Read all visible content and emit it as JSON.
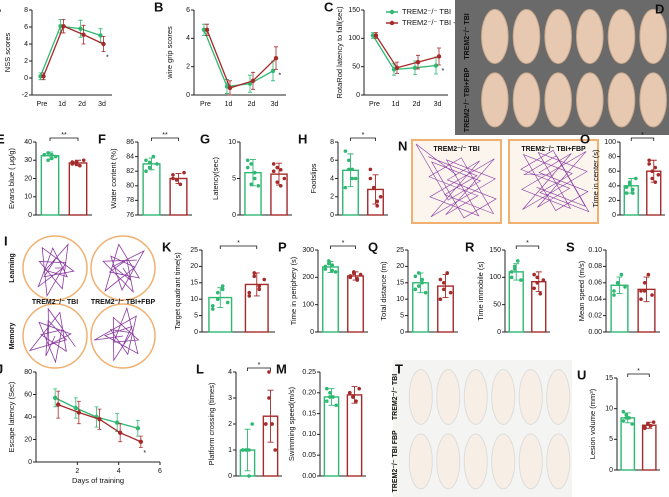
{
  "chart_data": [
    {
      "type": "line",
      "panel": "A",
      "ylabel": "NSS scores",
      "categories": [
        "Pre",
        "1d",
        "2d",
        "3d"
      ],
      "ylim": [
        -2,
        8
      ],
      "yticks": [
        -2,
        0,
        2,
        4,
        6,
        8
      ],
      "annotation": "*",
      "series": [
        {
          "color": "#2eb872",
          "values": [
            0.2,
            6.1,
            5.8,
            5.0
          ],
          "errors": [
            0.4,
            0.8,
            1.0,
            0.8
          ]
        },
        {
          "color": "#a52a2a",
          "values": [
            0.2,
            6.1,
            5.1,
            4.0
          ],
          "errors": [
            0.4,
            0.8,
            1.1,
            0.9
          ]
        }
      ]
    },
    {
      "type": "line",
      "panel": "B",
      "ylabel": "wire grip scores",
      "categories": [
        "Pre",
        "1d",
        "2d",
        "3d"
      ],
      "ylim": [
        0,
        6
      ],
      "yticks": [
        0,
        2,
        4,
        6
      ],
      "annotation": "*",
      "series": [
        {
          "color": "#2eb872",
          "values": [
            4.6,
            0.6,
            0.8,
            1.7
          ],
          "errors": [
            0.4,
            0.5,
            0.6,
            0.7
          ]
        },
        {
          "color": "#a52a2a",
          "values": [
            4.6,
            0.5,
            1.0,
            2.6
          ],
          "errors": [
            0.4,
            0.5,
            0.6,
            0.8
          ]
        }
      ]
    },
    {
      "type": "line",
      "panel": "C",
      "ylabel": "RotaRod latency to fall(sec)",
      "categories": [
        "Pre",
        "1d",
        "2d",
        "3d"
      ],
      "ylim": [
        0,
        150
      ],
      "yticks": [
        0,
        50,
        100,
        150
      ],
      "annotation": "*",
      "series": [
        {
          "name": "TREM2⁻/⁻ TBI",
          "color": "#2eb872",
          "values": [
            105,
            45,
            48,
            52
          ],
          "errors": [
            5,
            10,
            12,
            15
          ]
        },
        {
          "name": "TREM2⁻/⁻ TBI +FBP",
          "color": "#a52a2a",
          "values": [
            105,
            48,
            58,
            68
          ],
          "errors": [
            5,
            10,
            12,
            15
          ]
        }
      ]
    },
    {
      "type": "image",
      "panel": "D",
      "labels": [
        "TREM2⁻/⁻ TBI",
        "TREM2⁻/⁻ TBI+FBP"
      ]
    },
    {
      "type": "bar",
      "panel": "E",
      "ylabel": "Evans blue ( μg/g)",
      "ylim": [
        0,
        40
      ],
      "yticks": [
        0,
        10,
        20,
        30,
        40
      ],
      "significance": "**",
      "series": [
        {
          "color": "#2eb872",
          "value": 32.5,
          "error": 2,
          "points": [
            33,
            34,
            31,
            32,
            33,
            30,
            33
          ]
        },
        {
          "color": "#a52a2a",
          "value": 28.5,
          "error": 1.5,
          "points": [
            29,
            28,
            27,
            30,
            28,
            29
          ]
        }
      ]
    },
    {
      "type": "bar",
      "panel": "F",
      "ylabel": "Water content (%)",
      "ylim": [
        76,
        86
      ],
      "yticks": [
        76,
        78,
        80,
        82,
        84,
        86
      ],
      "significance": "**",
      "series": [
        {
          "color": "#2eb872",
          "value": 83,
          "error": 0.8,
          "points": [
            83.5,
            82.5,
            84,
            83,
            82,
            83.2
          ]
        },
        {
          "color": "#a52a2a",
          "value": 81,
          "error": 0.7,
          "points": [
            81.5,
            80.8,
            80.2,
            81.8,
            81
          ]
        }
      ]
    },
    {
      "type": "bar",
      "panel": "G",
      "ylabel": "Latency(sec)",
      "ylim": [
        0,
        10
      ],
      "yticks": [
        0,
        5,
        10
      ],
      "series": [
        {
          "color": "#2eb872",
          "value": 5.8,
          "error": 1.8,
          "points": [
            7.5,
            7,
            5,
            4,
            6.5,
            4.2,
            5.8
          ]
        },
        {
          "color": "#a52a2a",
          "value": 5.6,
          "error": 1.5,
          "points": [
            7,
            6.5,
            4,
            5,
            6,
            4.5,
            6.2
          ]
        }
      ]
    },
    {
      "type": "bar",
      "panel": "H",
      "ylabel": "Footslips",
      "ylim": [
        0,
        8
      ],
      "yticks": [
        0,
        2,
        4,
        6,
        8
      ],
      "significance": "*",
      "series": [
        {
          "color": "#2eb872",
          "value": 4.9,
          "error": 1.8,
          "points": [
            7,
            6,
            5,
            4,
            3,
            5,
            4
          ]
        },
        {
          "color": "#a52a2a",
          "value": 2.8,
          "error": 1.6,
          "points": [
            4,
            3,
            1,
            2,
            5,
            3,
            1.5
          ]
        }
      ]
    },
    {
      "type": "image",
      "panel": "N",
      "labels": [
        "TREM2⁻/⁻ TBI",
        "TREM2⁻/⁻ TBI+FBP"
      ]
    },
    {
      "type": "bar",
      "panel": "O",
      "ylabel": "Time in center (s)",
      "ylim": [
        0,
        100
      ],
      "yticks": [
        0,
        20,
        40,
        60,
        80,
        100
      ],
      "significance": "*",
      "series": [
        {
          "color": "#2eb872",
          "value": 40,
          "error": 10,
          "points": [
            30,
            45,
            35,
            50,
            38,
            42,
            30
          ]
        },
        {
          "color": "#a52a2a",
          "value": 60,
          "error": 15,
          "points": [
            75,
            60,
            45,
            55,
            70,
            50,
            65
          ]
        }
      ]
    },
    {
      "type": "image",
      "panel": "I",
      "labels": [
        "Learning",
        "Memory",
        "TREM2⁻/⁻ TBI",
        "TREM2⁻/⁻ TBI+FBP"
      ]
    },
    {
      "type": "bar",
      "panel": "K",
      "ylabel": "Target quadrant time(s)",
      "ylim": [
        0,
        25
      ],
      "yticks": [
        0,
        5,
        10,
        15,
        20,
        25
      ],
      "significance": "*",
      "series": [
        {
          "color": "#2eb872",
          "value": 10.5,
          "error": 3,
          "points": [
            8,
            12,
            14,
            9,
            7,
            10,
            13
          ]
        },
        {
          "color": "#a52a2a",
          "value": 14.5,
          "error": 3.5,
          "points": [
            12,
            18,
            14,
            16,
            11,
            17,
            13
          ]
        }
      ]
    },
    {
      "type": "bar",
      "panel": "P",
      "ylabel": "Time in periphery (s)",
      "ylim": [
        0,
        300
      ],
      "yticks": [
        0,
        100,
        200,
        300
      ],
      "significance": "*",
      "series": [
        {
          "color": "#2eb872",
          "value": 238,
          "error": 20,
          "points": [
            230,
            250,
            245,
            220,
            240,
            260,
            225
          ]
        },
        {
          "color": "#a52a2a",
          "value": 205,
          "error": 15,
          "points": [
            200,
            215,
            190,
            210,
            205,
            220,
            195
          ]
        }
      ]
    },
    {
      "type": "bar",
      "panel": "Q",
      "ylabel": "Total distance (m)",
      "ylim": [
        0,
        25
      ],
      "yticks": [
        0,
        5,
        10,
        15,
        20,
        25
      ],
      "series": [
        {
          "color": "#2eb872",
          "value": 15,
          "error": 3,
          "points": [
            13,
            18,
            16,
            12,
            17,
            14,
            15
          ]
        },
        {
          "color": "#a52a2a",
          "value": 14,
          "error": 3.5,
          "points": [
            10,
            15,
            18,
            12,
            16,
            13
          ]
        }
      ]
    },
    {
      "type": "bar",
      "panel": "R",
      "ylabel": "Time immobile (s)",
      "ylim": [
        0,
        150
      ],
      "yticks": [
        0,
        50,
        100,
        150
      ],
      "significance": "*",
      "series": [
        {
          "color": "#2eb872",
          "value": 110,
          "error": 15,
          "points": [
            100,
            120,
            130,
            95,
            110,
            115
          ]
        },
        {
          "color": "#a52a2a",
          "value": 92,
          "error": 18,
          "points": [
            80,
            100,
            70,
            95,
            105,
            90
          ]
        }
      ]
    },
    {
      "type": "bar",
      "panel": "S",
      "ylabel": "Mean speed (m/s)",
      "ylim": [
        0,
        0.1
      ],
      "yticks": [
        {
          "value": 0,
          "label": "0.00"
        },
        {
          "value": 0.02,
          "label": "0.02"
        },
        {
          "value": 0.04,
          "label": "0.04"
        },
        {
          "value": 0.06,
          "label": "0.06"
        },
        {
          "value": 0.08,
          "label": "0.08"
        },
        {
          "value": 0.1,
          "label": "0.10"
        }
      ],
      "series": [
        {
          "color": "#2eb872",
          "value": 0.057,
          "error": 0.01,
          "points": [
            0.05,
            0.06,
            0.07,
            0.055,
            0.045,
            0.06
          ]
        },
        {
          "color": "#a52a2a",
          "value": 0.052,
          "error": 0.015,
          "points": [
            0.04,
            0.06,
            0.07,
            0.045,
            0.05,
            0.05
          ]
        }
      ]
    },
    {
      "type": "line",
      "panel": "J",
      "ylabel": "Escape latency (Sec)",
      "xlabel": "Days of training",
      "x": [
        1,
        2,
        3,
        4,
        5
      ],
      "xlim": [
        0,
        6
      ],
      "xticks": [
        2,
        4,
        6
      ],
      "ylim": [
        0,
        80
      ],
      "yticks": [
        0,
        20,
        40,
        60,
        80
      ],
      "annotation": "*",
      "series": [
        {
          "color": "#2eb872",
          "values": [
            57,
            48,
            40,
            35,
            30
          ],
          "errors": [
            8,
            9,
            9,
            8,
            7
          ]
        },
        {
          "color": "#a52a2a",
          "values": [
            51,
            44,
            38,
            26,
            18
          ],
          "errors": [
            12,
            10,
            9,
            8,
            5
          ]
        }
      ]
    },
    {
      "type": "bar",
      "panel": "L",
      "ylabel": "Platform crossing (times)",
      "ylim": [
        0,
        4
      ],
      "yticks": [
        0,
        1,
        2,
        3,
        4
      ],
      "significance": "*",
      "series": [
        {
          "color": "#2eb872",
          "value": 1.0,
          "error": 0.8,
          "points": [
            1,
            1,
            0,
            2,
            1,
            1,
            1
          ]
        },
        {
          "color": "#a52a2a",
          "value": 2.3,
          "error": 1.0,
          "points": [
            2,
            3,
            2,
            1,
            2,
            4,
            2
          ]
        }
      ]
    },
    {
      "type": "bar",
      "panel": "M",
      "ylabel": "Swimming speed(m/s)",
      "ylim": [
        0,
        0.25
      ],
      "yticks": [
        {
          "value": 0,
          "label": "0.00"
        },
        {
          "value": 0.05,
          "label": "0.05"
        },
        {
          "value": 0.1,
          "label": "0.10"
        },
        {
          "value": 0.15,
          "label": "0.15"
        },
        {
          "value": 0.2,
          "label": "0.20"
        },
        {
          "value": 0.25,
          "label": "0.25"
        }
      ],
      "series": [
        {
          "color": "#2eb872",
          "value": 0.19,
          "error": 0.02,
          "points": [
            0.18,
            0.2,
            0.19,
            0.17,
            0.21,
            0.19
          ]
        },
        {
          "color": "#a52a2a",
          "value": 0.195,
          "error": 0.02,
          "points": [
            0.2,
            0.19,
            0.18,
            0.21,
            0.2,
            0.19
          ]
        }
      ]
    },
    {
      "type": "image",
      "panel": "T",
      "labels": [
        "TREM2⁻/⁻ TBI",
        "TREM2⁻/⁻ TBI FBP"
      ]
    },
    {
      "type": "bar",
      "panel": "U",
      "ylabel": "Lesion volume (mm³)",
      "ylim": [
        0,
        15
      ],
      "yticks": [
        0,
        5,
        10,
        15
      ],
      "significance": "*",
      "series": [
        {
          "color": "#2eb872",
          "value": 8.5,
          "error": 0.8,
          "points": [
            8,
            9,
            8.5,
            7.5,
            9.5,
            8.5
          ]
        },
        {
          "color": "#a52a2a",
          "value": 7.3,
          "error": 0.5,
          "points": [
            7,
            7.5,
            7.2,
            7.8,
            6.8
          ]
        }
      ]
    }
  ]
}
